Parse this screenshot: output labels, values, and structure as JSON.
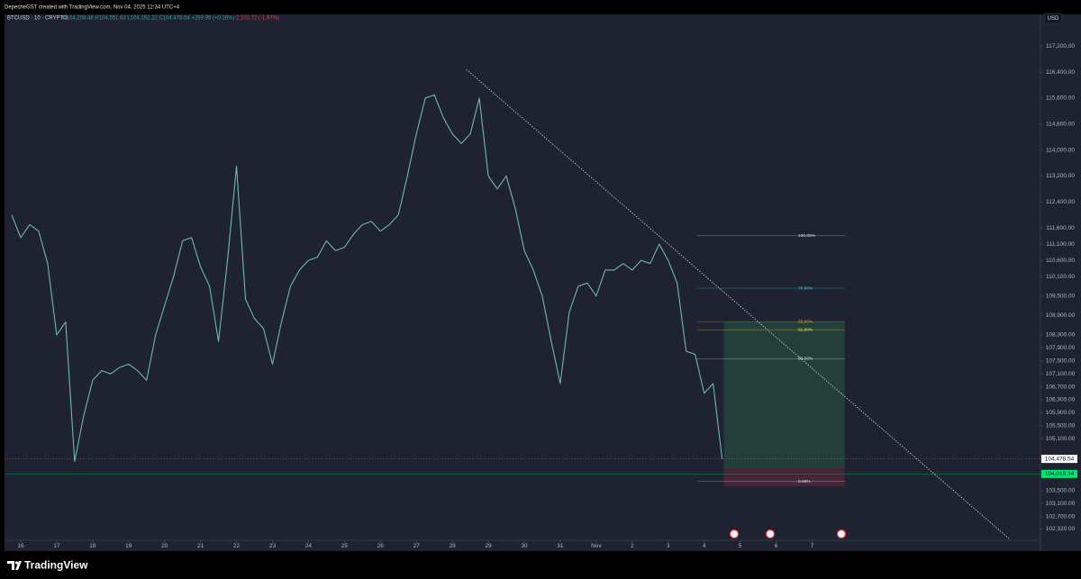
{
  "header": {
    "author": "DepecheGST created with TradingView.com, Nov 04, 2025 12:34 UTC+4",
    "brand": "TradingView"
  },
  "chart_data": {
    "type": "line",
    "symbol_line": "BTCUSD · 10 · CRYPTO",
    "ohlc": "O104,208.48 H104,551.63 L104,192.22 C104,478.54 +269.99 (+0.26%)",
    "change": "-2,102.72 (-1.97%)",
    "currency": "USD",
    "color": "#6fb8b0",
    "x": [
      15.75,
      16,
      16.25,
      16.5,
      16.75,
      17,
      17.25,
      17.5,
      17.75,
      18,
      18.25,
      18.5,
      18.75,
      19,
      19.25,
      19.5,
      19.75,
      20,
      20.25,
      20.5,
      20.75,
      21,
      21.25,
      21.5,
      21.75,
      22,
      22.25,
      22.5,
      22.75,
      23,
      23.25,
      23.5,
      23.75,
      24,
      24.25,
      24.5,
      24.75,
      25,
      25.25,
      25.5,
      25.75,
      26,
      26.25,
      26.5,
      26.75,
      27,
      27.25,
      27.5,
      27.75,
      28,
      28.25,
      28.5,
      28.75,
      29,
      29.25,
      29.5,
      29.75,
      30,
      30.25,
      30.5,
      30.75,
      31,
      31.25,
      31.5,
      31.75,
      32,
      32.25,
      32.5,
      32.75,
      33,
      33.25,
      33.5,
      33.75,
      34,
      34.25,
      34.5,
      34.75,
      35,
      35.25,
      35.5
    ],
    "values": [
      112000,
      111300,
      111700,
      111500,
      110500,
      108300,
      108700,
      104400,
      105800,
      106900,
      107200,
      107100,
      107300,
      107400,
      107200,
      106900,
      108300,
      109200,
      110100,
      111200,
      111300,
      110400,
      109800,
      108100,
      110600,
      113500,
      109400,
      108800,
      108500,
      107400,
      108700,
      109800,
      110300,
      110600,
      110700,
      111200,
      110900,
      111000,
      111400,
      111700,
      111800,
      111500,
      111700,
      112000,
      113200,
      114500,
      115600,
      115700,
      115000,
      114500,
      114200,
      114500,
      115600,
      113200,
      112800,
      113200,
      112200,
      110900,
      110300,
      109500,
      108100,
      106800,
      109000,
      109800,
      109900,
      109500,
      110300,
      110300,
      110500,
      110300,
      110600,
      110500,
      111100,
      110600,
      109900,
      107800,
      107700,
      106500,
      106800,
      104478.54
    ],
    "xlim": [
      15.55,
      44.35
    ],
    "ylim": [
      101970,
      118180
    ],
    "xticks": [
      16,
      17,
      18,
      19,
      20,
      21,
      22,
      23,
      24,
      25,
      26,
      27,
      28,
      29,
      30,
      31,
      {
        "value": 32,
        "label": "Nov"
      },
      {
        "value": 33,
        "label": "2"
      },
      {
        "value": 34,
        "label": "3"
      },
      {
        "value": 35,
        "label": "4"
      },
      {
        "value": 36,
        "label": "5"
      },
      {
        "value": 37,
        "label": "6"
      },
      {
        "value": 38,
        "label": "7"
      }
    ],
    "yticks": [
      {
        "value": 117200,
        "label": "117,200.00"
      },
      {
        "value": 116400,
        "label": "116,400.00"
      },
      {
        "value": 115600,
        "label": "115,600.00"
      },
      {
        "value": 114800,
        "label": "114,800.00"
      },
      {
        "value": 114000,
        "label": "114,000.00"
      },
      {
        "value": 113200,
        "label": "113,200.00"
      },
      {
        "value": 112400,
        "label": "112,400.00"
      },
      {
        "value": 111600,
        "label": "111,600.00"
      },
      {
        "value": 111100,
        "label": "111,100.00"
      },
      {
        "value": 110600,
        "label": "110,600.00"
      },
      {
        "value": 110100,
        "label": "110,100.00"
      },
      {
        "value": 109500,
        "label": "109,500.00"
      },
      {
        "value": 108900,
        "label": "108,900.00"
      },
      {
        "value": 108300,
        "label": "108,300.00"
      },
      {
        "value": 107900,
        "label": "107,900.00"
      },
      {
        "value": 107500,
        "label": "107,500.00"
      },
      {
        "value": 107100,
        "label": "107,100.00"
      },
      {
        "value": 106700,
        "label": "106,700.00"
      },
      {
        "value": 106300,
        "label": "106,300.00"
      },
      {
        "value": 105900,
        "label": "105,900.00"
      },
      {
        "value": 105500,
        "label": "105,500.00"
      },
      {
        "value": 105100,
        "label": "105,100.00"
      },
      {
        "value": 103500,
        "label": "103,500.00"
      },
      {
        "value": 103100,
        "label": "103,100.00"
      },
      {
        "value": 102700,
        "label": "102,700.00"
      },
      {
        "value": 102320,
        "label": "102,320.00"
      }
    ],
    "grid": false,
    "last_price": {
      "value": 104478.54,
      "label": "104,478.54"
    },
    "alert_price": {
      "value": 104015.34,
      "label": "104,015.34",
      "color": "#00e676"
    },
    "trendline": {
      "x": [
        28.39,
        43.5
      ],
      "y": [
        116480,
        102000
      ],
      "color": "#d1d4dc"
    },
    "position": {
      "x": [
        35.55,
        38.91
      ],
      "target": 108710,
      "entry": 104200,
      "stop": 103640
    },
    "fib_x": [
      34.8,
      38.91
    ],
    "fib_levels": [
      {
        "level": {
          "value": 100,
          "label": "100.00%"
        },
        "price": 111357,
        "color": "#e0e3eb"
      },
      {
        "level": {
          "value": 78.6,
          "label": "78.60%"
        },
        "price": 109741,
        "color": "#4dd0e1"
      },
      {
        "level": {
          "value": 65,
          "label": "65.00%"
        },
        "price": 108710,
        "color": "#f7a21b"
      },
      {
        "level": {
          "value": 61.8,
          "label": "61.80%"
        },
        "price": 108460,
        "color": "#f5e663"
      },
      {
        "level": {
          "value": 50,
          "label": "50.00%"
        },
        "price": 107569,
        "color": "#e0e3eb"
      },
      {
        "level": {
          "value": 0,
          "label": "0.00%"
        },
        "price": 103780,
        "color": "#e0e3eb"
      }
    ]
  }
}
